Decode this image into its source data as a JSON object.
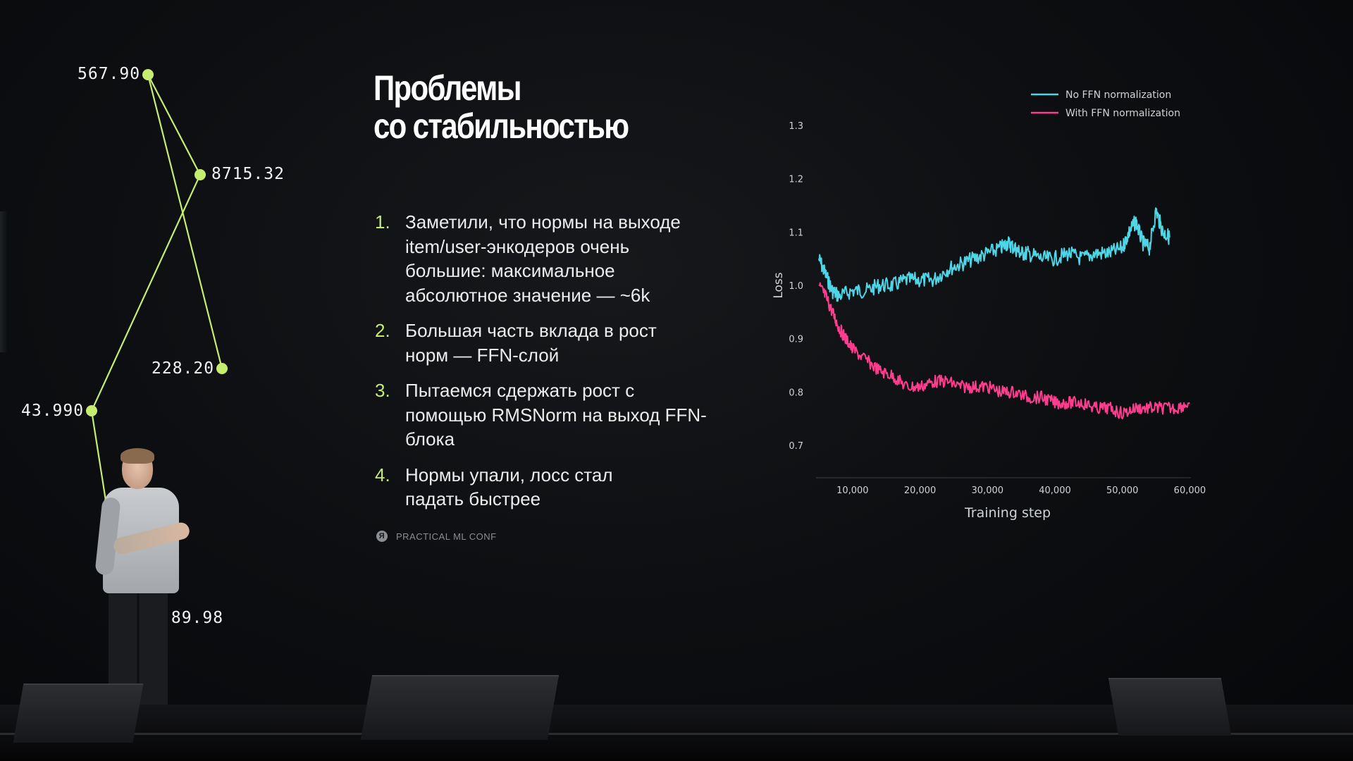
{
  "graph": {
    "line_color": "#c6ee6e",
    "nodes": [
      {
        "label": "567.90"
      },
      {
        "label": "8715.32"
      },
      {
        "label": "228.20"
      },
      {
        "label": "43.990"
      },
      {
        "label": ".89.98"
      }
    ]
  },
  "slide": {
    "title_line1": "Проблемы",
    "title_line2": "со стабильностью",
    "number_color": "#c4ea7a",
    "items": [
      {
        "num": "1.",
        "lines": [
          "Заметили, что нормы на выходе",
          "item/user-энкодеров очень",
          "большие: максимальное",
          "абсолютное значение — ~6k"
        ]
      },
      {
        "num": "2.",
        "lines": [
          "Большая часть вклада в рост",
          "норм — FFN-слой"
        ]
      },
      {
        "num": "3.",
        "lines": [
          "Пытаемся сдержать рост с",
          "помощью RMSNorm на выход FFN-",
          "блока"
        ]
      },
      {
        "num": "4.",
        "lines": [
          "Нормы упали, лосс стал",
          "падать быстрее"
        ]
      }
    ],
    "footer": {
      "icon": "yandex-logo-icon",
      "icon_glyph": "Я",
      "text": "PRACTICAL ML CONF"
    }
  },
  "chart_data": {
    "type": "line",
    "title": "",
    "xlabel": "Training step",
    "ylabel": "Loss",
    "xlim": [
      5000,
      61000
    ],
    "ylim": [
      0.65,
      1.35
    ],
    "xticks": [
      10000,
      20000,
      30000,
      40000,
      50000,
      60000
    ],
    "xtick_labels": [
      "10,000",
      "20,000",
      "30,000",
      "40,000",
      "50,000",
      "60,000"
    ],
    "yticks": [
      0.7,
      0.8,
      0.9,
      1.0,
      1.1,
      1.2,
      1.3
    ],
    "ytick_labels": [
      "0.7",
      "0.8",
      "0.9",
      "1.0",
      "1.1",
      "1.2",
      "1.3"
    ],
    "legend": "top-right",
    "grid": false,
    "series": [
      {
        "name": "No FFN normalization",
        "color": "#4fd6e6",
        "x": [
          5000,
          6000,
          7000,
          8000,
          10000,
          12000,
          14000,
          16000,
          18000,
          20000,
          22000,
          24000,
          26000,
          28000,
          30000,
          32000,
          33000,
          34000,
          35000,
          36000,
          38000,
          40000,
          42000,
          44000,
          46000,
          48000,
          50000,
          51000,
          52000,
          53000,
          54000,
          55000,
          56000,
          57000
        ],
        "y": [
          1.05,
          1.02,
          0.99,
          0.98,
          0.99,
          0.99,
          1.0,
          1.0,
          1.01,
          1.01,
          1.01,
          1.03,
          1.04,
          1.05,
          1.06,
          1.07,
          1.08,
          1.07,
          1.06,
          1.06,
          1.05,
          1.05,
          1.06,
          1.05,
          1.06,
          1.06,
          1.07,
          1.1,
          1.12,
          1.08,
          1.07,
          1.14,
          1.1,
          1.09
        ]
      },
      {
        "name": "With FFN normalization",
        "color": "#ff3d8e",
        "x": [
          5000,
          6000,
          7000,
          8000,
          9000,
          10000,
          12000,
          14000,
          16000,
          18000,
          20000,
          22000,
          24000,
          26000,
          28000,
          30000,
          32000,
          34000,
          36000,
          38000,
          40000,
          42000,
          44000,
          46000,
          48000,
          50000,
          52000,
          54000,
          56000,
          58000,
          60000
        ],
        "y": [
          1.0,
          0.98,
          0.95,
          0.92,
          0.9,
          0.88,
          0.86,
          0.84,
          0.83,
          0.81,
          0.81,
          0.82,
          0.82,
          0.81,
          0.81,
          0.81,
          0.8,
          0.8,
          0.79,
          0.79,
          0.78,
          0.78,
          0.78,
          0.77,
          0.77,
          0.76,
          0.77,
          0.77,
          0.77,
          0.77,
          0.78
        ]
      }
    ]
  }
}
